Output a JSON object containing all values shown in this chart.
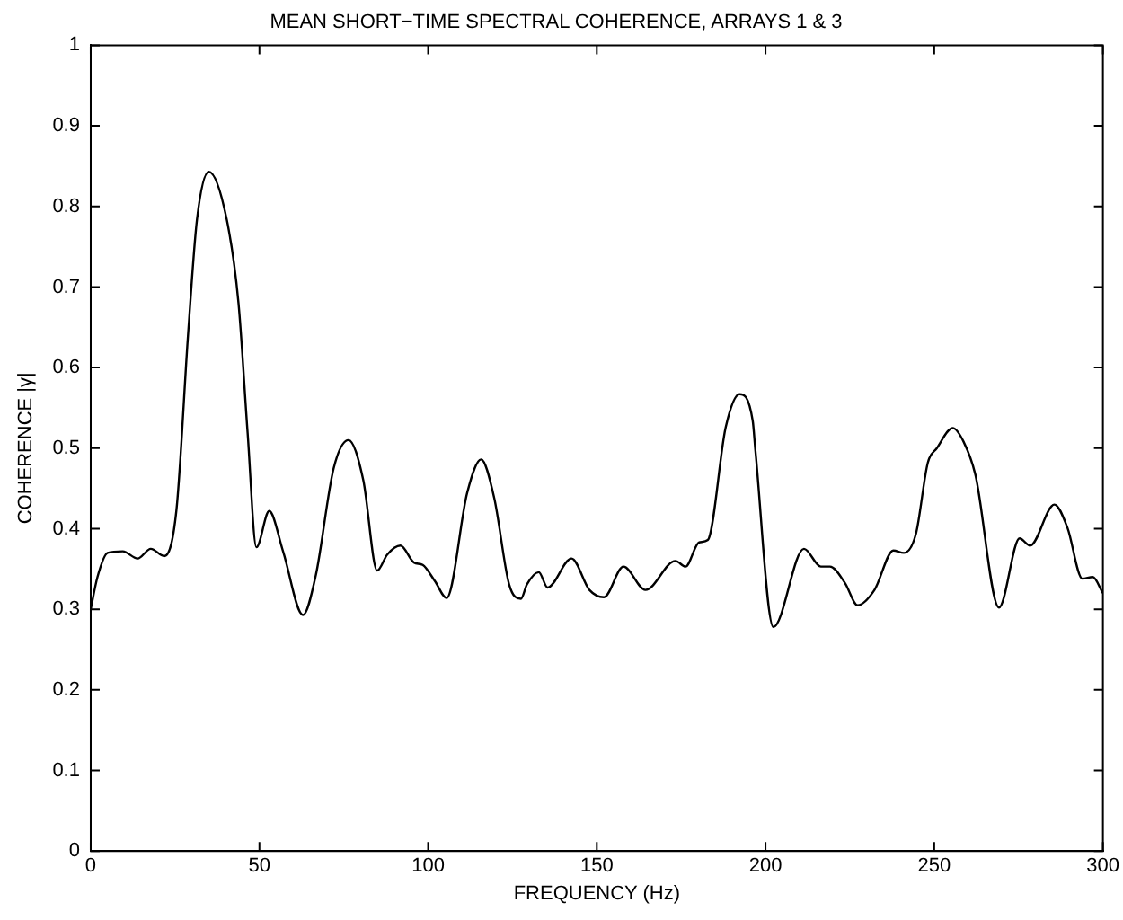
{
  "chart_data": {
    "type": "line",
    "title": "MEAN SHORT−TIME SPECTRAL COHERENCE, ARRAYS 1 & 3",
    "xlabel": "FREQUENCY (Hz)",
    "ylabel": "COHERENCE |γ|",
    "xlim": [
      0,
      300
    ],
    "xticks": [
      0,
      50,
      100,
      150,
      200,
      250,
      300
    ],
    "ylim": [
      0,
      1
    ],
    "yticks": [
      0,
      0.1,
      0.2,
      0.3,
      0.4,
      0.5,
      0.6,
      0.7,
      0.8,
      0.9,
      1
    ],
    "grid": false,
    "legend": false,
    "marker": "none",
    "line_style": "solid",
    "series": [
      {
        "color": "#000000",
        "x": [
          0,
          2,
          5,
          9.5,
          13.9,
          17.8,
          21.8,
          25.4,
          28.9,
          31.5,
          35,
          40.3,
          43.8,
          46.5,
          49.1,
          52.9,
          57,
          62.9,
          66.7,
          72,
          76.4,
          80.8,
          84.9,
          87.9,
          91.8,
          95.8,
          98.4,
          102,
          105.5,
          111.6,
          115.7,
          119.6,
          124,
          127.5,
          129.3,
          132.8,
          135.4,
          142.5,
          147.8,
          152.1,
          157.9,
          164.4,
          173.3,
          176.3,
          180.3,
          182.9,
          188.2,
          192.3,
          196.2,
          197,
          202.3,
          211.4,
          216.4,
          219.1,
          223.5,
          227.3,
          232.3,
          237.9,
          241,
          244.6,
          248.1,
          250.8,
          255.5,
          258.7,
          262.2,
          269.2,
          275.3,
          278.4,
          285.6,
          289.5,
          293.9,
          297,
          300
        ],
        "values": [
          0.3,
          0.34,
          0.37,
          0.372,
          0.363,
          0.375,
          0.366,
          0.423,
          0.644,
          0.784,
          0.843,
          0.784,
          0.68,
          0.519,
          0.377,
          0.422,
          0.372,
          0.293,
          0.342,
          0.475,
          0.51,
          0.46,
          0.348,
          0.368,
          0.379,
          0.358,
          0.355,
          0.335,
          0.314,
          0.445,
          0.486,
          0.438,
          0.331,
          0.313,
          0.331,
          0.346,
          0.327,
          0.363,
          0.324,
          0.315,
          0.353,
          0.324,
          0.36,
          0.353,
          0.383,
          0.386,
          0.526,
          0.567,
          0.534,
          0.497,
          0.278,
          0.375,
          0.353,
          0.353,
          0.333,
          0.305,
          0.324,
          0.373,
          0.37,
          0.394,
          0.482,
          0.5,
          0.525,
          0.508,
          0.467,
          0.302,
          0.388,
          0.379,
          0.43,
          0.401,
          0.338,
          0.34,
          0.32
        ]
      }
    ]
  }
}
